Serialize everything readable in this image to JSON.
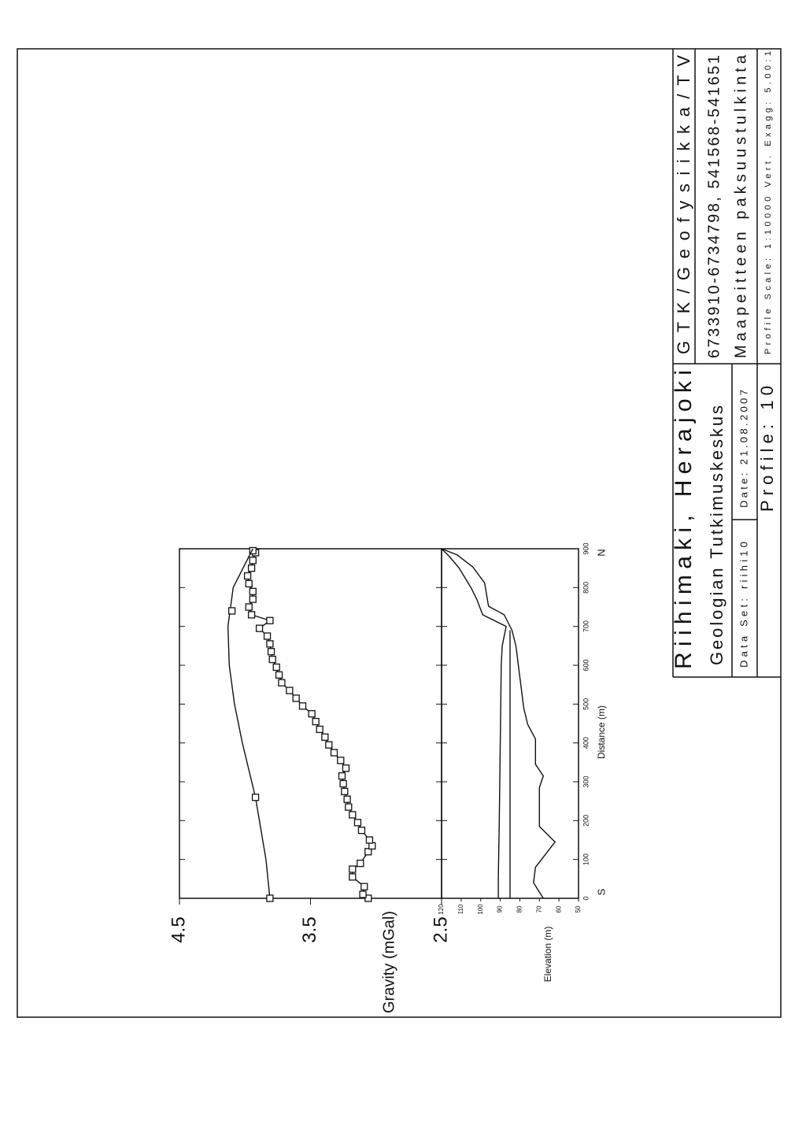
{
  "chart_data": [
    {
      "type": "line",
      "y_label": "Gravity (mGal)",
      "xlim": [
        0,
        900
      ],
      "ylim": [
        2.5,
        4.5
      ],
      "yticks": [
        2.5,
        3.5,
        4.5
      ],
      "series": [
        {
          "color": "#111111",
          "marker": "square",
          "line": true,
          "x": [
            0,
            10,
            30,
            55,
            75,
            90,
            120,
            135,
            150,
            175,
            195,
            215,
            235,
            255,
            275,
            295,
            315,
            335,
            355,
            375,
            395,
            415,
            435,
            455,
            475,
            495,
            515,
            535,
            555,
            575,
            595,
            615,
            635,
            655,
            675,
            695,
            715,
            730,
            750,
            770,
            790,
            810,
            830,
            850,
            870,
            890,
            895
          ],
          "values": [
            3.06,
            3.1,
            3.09,
            3.18,
            3.18,
            3.12,
            3.06,
            3.03,
            3.05,
            3.11,
            3.14,
            3.18,
            3.21,
            3.22,
            3.24,
            3.25,
            3.26,
            3.23,
            3.27,
            3.32,
            3.36,
            3.39,
            3.43,
            3.46,
            3.49,
            3.56,
            3.61,
            3.66,
            3.72,
            3.74,
            3.76,
            3.79,
            3.8,
            3.81,
            3.83,
            3.89,
            3.81,
            3.95,
            3.97,
            3.94,
            3.94,
            3.97,
            3.98,
            3.95,
            3.94,
            3.92,
            3.94
          ]
        },
        {
          "color": "#111111",
          "marker": "none",
          "line": true,
          "x": [
            0,
            100,
            200,
            260,
            400,
            500,
            600,
            700,
            800,
            900
          ],
          "values": [
            3.81,
            3.84,
            3.89,
            3.92,
            4.02,
            4.08,
            4.12,
            4.13,
            4.09,
            3.94
          ]
        },
        {
          "color": "#111111",
          "marker": "square",
          "line": false,
          "x": [
            0,
            260,
            740
          ],
          "values": [
            3.81,
            3.92,
            4.1
          ]
        }
      ]
    },
    {
      "type": "line",
      "y_label": "Elevation (m)",
      "x_label": "Distance (m)",
      "x_end_labels": [
        "S",
        "N"
      ],
      "xlim": [
        0,
        900
      ],
      "xticks": [
        0,
        100,
        200,
        300,
        400,
        500,
        600,
        700,
        800,
        900
      ],
      "ylim": [
        50,
        120
      ],
      "yticks": [
        50,
        60,
        70,
        80,
        90,
        100,
        110,
        120
      ],
      "series": [
        {
          "color": "#111111",
          "x": [
            0,
            50,
            200,
            400,
            600,
            650,
            700,
            730,
            770,
            800,
            850,
            880,
            900
          ],
          "values": [
            91,
            91,
            90.5,
            90,
            89.5,
            89,
            87,
            99,
            102,
            105,
            111,
            116,
            120
          ]
        },
        {
          "color": "#111111",
          "x": [
            0,
            690
          ],
          "values": [
            85,
            85
          ]
        },
        {
          "color": "#111111",
          "x": [
            0,
            40,
            80,
            145,
            185,
            245,
            285,
            315,
            345,
            385,
            410,
            448,
            490,
            570,
            650,
            690,
            730,
            752,
            812,
            853,
            884,
            900
          ],
          "values": [
            68,
            73,
            72,
            62,
            70,
            70,
            70,
            68,
            72,
            72,
            72,
            76,
            78,
            80,
            82,
            84,
            88,
            96,
            98,
            104,
            112,
            120
          ]
        }
      ]
    }
  ],
  "title_block": {
    "title": "Riihimaki, Herajoki",
    "department": "GTK/Geofysiikka/TV",
    "organization": "Geologian Tutkimuskeskus",
    "coordinates": "6733910-6734798, 541568-541651",
    "data_set": "Data Set: riihi10",
    "date": "Date: 21.08.2007",
    "subject": "Maapeitteen paksuustulkinta",
    "profile": "Profile: 10",
    "scale": "Profile Scale: 1:10000 Vert. Exagg: 5.00:1"
  }
}
